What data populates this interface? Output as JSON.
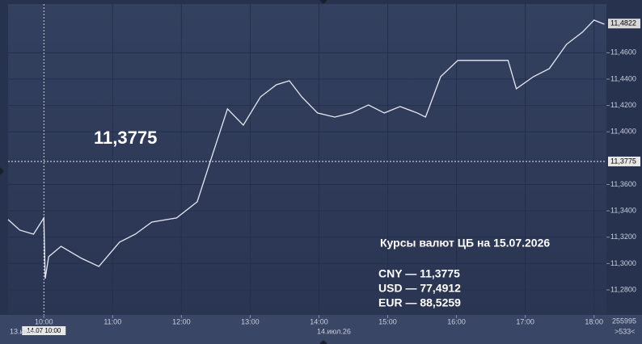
{
  "chart_data": {
    "type": "line",
    "x": [
      9.48,
      9.65,
      9.85,
      10.0,
      10.02,
      10.07,
      10.25,
      10.55,
      10.8,
      11.1,
      11.33,
      11.57,
      11.93,
      12.23,
      12.42,
      12.67,
      12.9,
      13.15,
      13.38,
      13.57,
      13.75,
      13.98,
      14.23,
      14.47,
      14.72,
      14.95,
      15.18,
      15.43,
      15.55,
      15.77,
      16.02,
      16.38,
      16.75,
      16.87,
      17.12,
      17.35,
      17.6,
      17.83,
      18.0,
      18.15
    ],
    "series": [
      {
        "name": "CNY",
        "color": "#e6e9f2",
        "values": [
          11.3334,
          11.3254,
          11.3223,
          11.3346,
          11.2886,
          11.3052,
          11.3131,
          11.3039,
          11.2978,
          11.3162,
          11.3223,
          11.3315,
          11.3346,
          11.3469,
          11.3775,
          11.4174,
          11.4051,
          11.4265,
          11.4357,
          11.4388,
          11.4265,
          11.4143,
          11.4112,
          11.4143,
          11.4204,
          11.4143,
          11.4192,
          11.4143,
          11.4112,
          11.4419,
          11.4542,
          11.4542,
          11.4542,
          11.4327,
          11.4419,
          11.448,
          11.4664,
          11.4756,
          11.4848,
          11.4817
        ]
      }
    ],
    "xlim": [
      9.48,
      18.18
    ],
    "xticks": [
      {
        "value": 10,
        "label": "10:00"
      },
      {
        "value": 11,
        "label": "11:00"
      },
      {
        "value": 12,
        "label": "12:00"
      },
      {
        "value": 13,
        "label": "13:00"
      },
      {
        "value": 14,
        "label": "14:00"
      },
      {
        "value": 15,
        "label": "15:00"
      },
      {
        "value": 16,
        "label": "16:00"
      },
      {
        "value": 17,
        "label": "17:00"
      },
      {
        "value": 18,
        "label": "18:00"
      }
    ],
    "ylim": [
      11.261,
      11.497
    ],
    "yticks": [
      {
        "value": 11.28,
        "label": "11,2800"
      },
      {
        "value": 11.3,
        "label": "11,3000"
      },
      {
        "value": 11.32,
        "label": "11,3200"
      },
      {
        "value": 11.34,
        "label": "11,3400"
      },
      {
        "value": 11.36,
        "label": "11,3600"
      },
      {
        "value": 11.4,
        "label": "11,4000"
      },
      {
        "value": 11.42,
        "label": "11,4200"
      },
      {
        "value": 11.44,
        "label": "11,4400"
      },
      {
        "value": 11.46,
        "label": "11,4600"
      }
    ],
    "grid": true,
    "crosshair": {
      "x": 10,
      "y": 11.3775,
      "y_label": "11,3775",
      "x_label": "14.07 10:00",
      "big_label": "11,3775"
    },
    "last_price": {
      "value": 11.4822,
      "label": "11,4822"
    },
    "dates": [
      "13.июл",
      "14.июл.26"
    ],
    "counters": [
      "255995",
      ">533<"
    ],
    "info": {
      "title": "Курсы валют ЦБ на 15.07.2026",
      "lines": [
        "CNY — 11,3775",
        "USD — 77,4912",
        "EUR — 88,5259"
      ]
    }
  }
}
